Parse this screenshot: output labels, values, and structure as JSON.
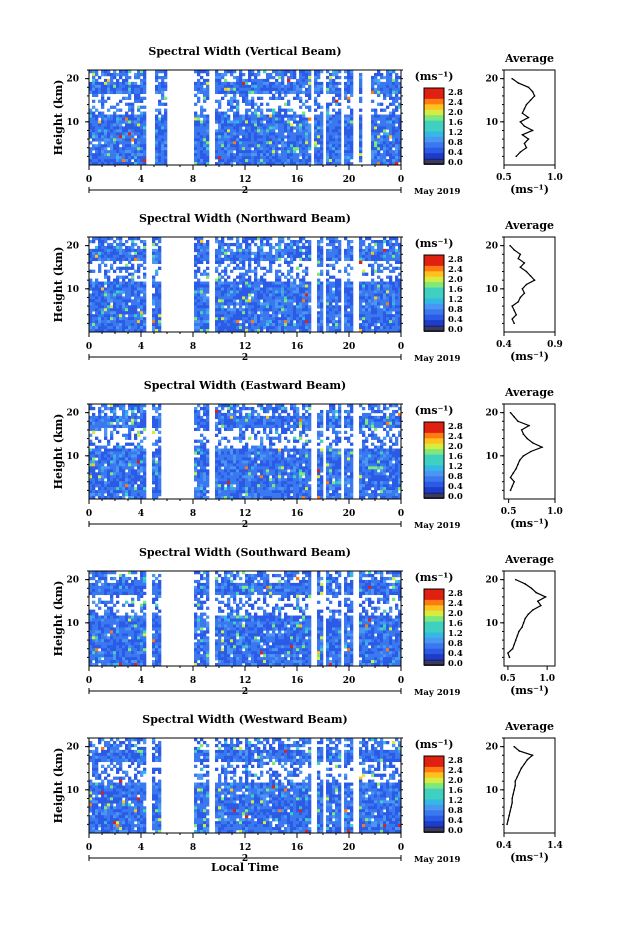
{
  "chart_data": [
    {
      "type": "heatmap",
      "title": "Spectral Width (Vertical Beam)",
      "ylabel": "Height (km)",
      "colorbar_unit": "(ms⁻¹)",
      "colorbar_ticks": [
        "2.8",
        "2.4",
        "2.0",
        "1.6",
        "1.2",
        "0.8",
        "0.4",
        "0.0"
      ],
      "x_ticks": [
        "0",
        "4",
        "8",
        "12",
        "16",
        "20",
        "0"
      ],
      "y_ticks": [
        "20",
        "10"
      ],
      "date_label": "2",
      "date_caption": "May 2019",
      "gaps": [
        [
          4.3,
          5.0
        ],
        [
          5.8,
          8.0
        ],
        [
          9.2,
          9.5
        ],
        [
          16.9,
          17.3
        ],
        [
          17.9,
          18.2
        ],
        [
          19.2,
          19.5
        ],
        [
          20.2,
          20.6
        ],
        [
          21.0,
          21.5
        ]
      ],
      "average": {
        "title": "Average",
        "xlabel": "(ms⁻¹)",
        "x_ticks": [
          "0.5",
          "1.0"
        ],
        "xlim": [
          0.5,
          1.0
        ],
        "y_ticks": [
          "20",
          "10"
        ],
        "height": [
          2,
          3,
          4,
          5,
          6,
          7,
          8,
          9,
          10,
          11,
          12,
          13,
          14,
          15,
          16,
          17,
          18,
          19,
          20
        ],
        "value": [
          0.62,
          0.66,
          0.72,
          0.7,
          0.74,
          0.68,
          0.78,
          0.7,
          0.66,
          0.74,
          0.68,
          0.7,
          0.72,
          0.76,
          0.8,
          0.78,
          0.74,
          0.64,
          0.58
        ]
      }
    },
    {
      "type": "heatmap",
      "title": "Spectral Width (Northward Beam)",
      "ylabel": "Height (km)",
      "colorbar_unit": "(ms⁻¹)",
      "colorbar_ticks": [
        "2.8",
        "2.4",
        "2.0",
        "1.6",
        "1.2",
        "0.8",
        "0.4",
        "0.0"
      ],
      "x_ticks": [
        "0",
        "4",
        "8",
        "12",
        "16",
        "20",
        "0"
      ],
      "y_ticks": [
        "20",
        "10"
      ],
      "date_label": "2",
      "date_caption": "May 2019",
      "gaps": [
        [
          4.3,
          4.7
        ],
        [
          5.5,
          8.0
        ],
        [
          9.2,
          9.5
        ],
        [
          17.0,
          17.4
        ],
        [
          17.9,
          18.2
        ],
        [
          19.2,
          19.5
        ],
        [
          20.2,
          20.6
        ]
      ],
      "average": {
        "title": "Average",
        "xlabel": "(ms⁻¹)",
        "x_ticks": [
          "0.4",
          "0.9"
        ],
        "xlim": [
          0.4,
          0.9
        ],
        "y_ticks": [
          "20",
          "10"
        ],
        "height": [
          2,
          3,
          4,
          5,
          6,
          7,
          8,
          9,
          10,
          11,
          12,
          13,
          14,
          15,
          16,
          17,
          18,
          19,
          20
        ],
        "value": [
          0.5,
          0.48,
          0.52,
          0.5,
          0.48,
          0.54,
          0.56,
          0.6,
          0.58,
          0.62,
          0.7,
          0.66,
          0.62,
          0.56,
          0.6,
          0.54,
          0.56,
          0.5,
          0.46
        ]
      }
    },
    {
      "type": "heatmap",
      "title": "Spectral Width (Eastward Beam)",
      "ylabel": "Height (km)",
      "colorbar_unit": "(ms⁻¹)",
      "colorbar_ticks": [
        "2.8",
        "2.4",
        "2.0",
        "1.6",
        "1.2",
        "0.8",
        "0.4",
        "0.0"
      ],
      "x_ticks": [
        "0",
        "4",
        "8",
        "12",
        "16",
        "20",
        "0"
      ],
      "y_ticks": [
        "20",
        "10"
      ],
      "date_label": "2",
      "date_caption": "May 2019",
      "gaps": [
        [
          4.3,
          4.7
        ],
        [
          5.5,
          8.0
        ],
        [
          9.2,
          9.5
        ],
        [
          17.0,
          17.4
        ],
        [
          17.9,
          18.2
        ],
        [
          19.2,
          19.5
        ],
        [
          20.2,
          20.6
        ]
      ],
      "average": {
        "title": "Average",
        "xlabel": "(ms⁻¹)",
        "x_ticks": [
          "0.5",
          "1.0"
        ],
        "xlim": [
          0.45,
          1.0
        ],
        "y_ticks": [
          "20",
          "10"
        ],
        "height": [
          2,
          3,
          4,
          5,
          6,
          7,
          8,
          9,
          10,
          11,
          12,
          13,
          14,
          15,
          16,
          17,
          18,
          19,
          20
        ],
        "value": [
          0.52,
          0.54,
          0.56,
          0.52,
          0.55,
          0.58,
          0.6,
          0.62,
          0.66,
          0.74,
          0.86,
          0.76,
          0.7,
          0.66,
          0.64,
          0.72,
          0.6,
          0.56,
          0.52
        ]
      }
    },
    {
      "type": "heatmap",
      "title": "Spectral Width (Southward Beam)",
      "ylabel": "Height (km)",
      "colorbar_unit": "(ms⁻¹)",
      "colorbar_ticks": [
        "2.8",
        "2.4",
        "2.0",
        "1.6",
        "1.2",
        "0.8",
        "0.4",
        "0.0"
      ],
      "x_ticks": [
        "0",
        "4",
        "8",
        "12",
        "16",
        "20",
        "0"
      ],
      "y_ticks": [
        "20",
        "10"
      ],
      "date_label": "2",
      "date_caption": "May 2019",
      "gaps": [
        [
          4.3,
          4.7
        ],
        [
          5.5,
          8.0
        ],
        [
          9.2,
          9.5
        ],
        [
          17.0,
          17.4
        ],
        [
          17.9,
          18.2
        ],
        [
          19.2,
          19.5
        ],
        [
          20.2,
          20.6
        ]
      ],
      "average": {
        "title": "Average",
        "xlabel": "(ms⁻¹)",
        "x_ticks": [
          "0.5",
          "1.0"
        ],
        "xlim": [
          0.45,
          1.1
        ],
        "y_ticks": [
          "20",
          "10"
        ],
        "height": [
          2,
          3,
          4,
          5,
          6,
          7,
          8,
          9,
          10,
          11,
          12,
          13,
          14,
          15,
          16,
          17,
          18,
          19,
          20
        ],
        "value": [
          0.52,
          0.5,
          0.56,
          0.58,
          0.6,
          0.62,
          0.64,
          0.68,
          0.7,
          0.72,
          0.76,
          0.82,
          0.92,
          0.88,
          0.98,
          0.86,
          0.8,
          0.72,
          0.6
        ]
      }
    },
    {
      "type": "heatmap",
      "title": "Spectral Width (Westward Beam)",
      "ylabel": "Height (km)",
      "colorbar_unit": "(ms⁻¹)",
      "colorbar_ticks": [
        "2.8",
        "2.4",
        "2.0",
        "1.6",
        "1.2",
        "0.8",
        "0.4",
        "0.0"
      ],
      "x_ticks": [
        "0",
        "4",
        "8",
        "12",
        "16",
        "20",
        "0"
      ],
      "y_ticks": [
        "20",
        "10"
      ],
      "date_label": "2",
      "date_caption": "May 2019",
      "xlabel": "Local Time",
      "gaps": [
        [
          4.3,
          4.7
        ],
        [
          5.5,
          8.0
        ],
        [
          9.2,
          9.5
        ],
        [
          17.0,
          17.4
        ],
        [
          17.9,
          18.2
        ],
        [
          19.2,
          19.5
        ],
        [
          20.2,
          20.6
        ]
      ],
      "average": {
        "title": "Average",
        "xlabel": "(ms⁻¹)",
        "x_ticks": [
          "0.4",
          "1.4"
        ],
        "xlim": [
          0.4,
          1.4
        ],
        "y_ticks": [
          "20",
          "10"
        ],
        "height": [
          2,
          3,
          4,
          5,
          6,
          7,
          8,
          9,
          10,
          11,
          12,
          13,
          14,
          15,
          16,
          17,
          18,
          19,
          20
        ],
        "value": [
          0.46,
          0.48,
          0.5,
          0.52,
          0.54,
          0.56,
          0.56,
          0.58,
          0.6,
          0.62,
          0.62,
          0.66,
          0.7,
          0.74,
          0.8,
          0.86,
          0.96,
          0.7,
          0.6
        ]
      }
    }
  ]
}
